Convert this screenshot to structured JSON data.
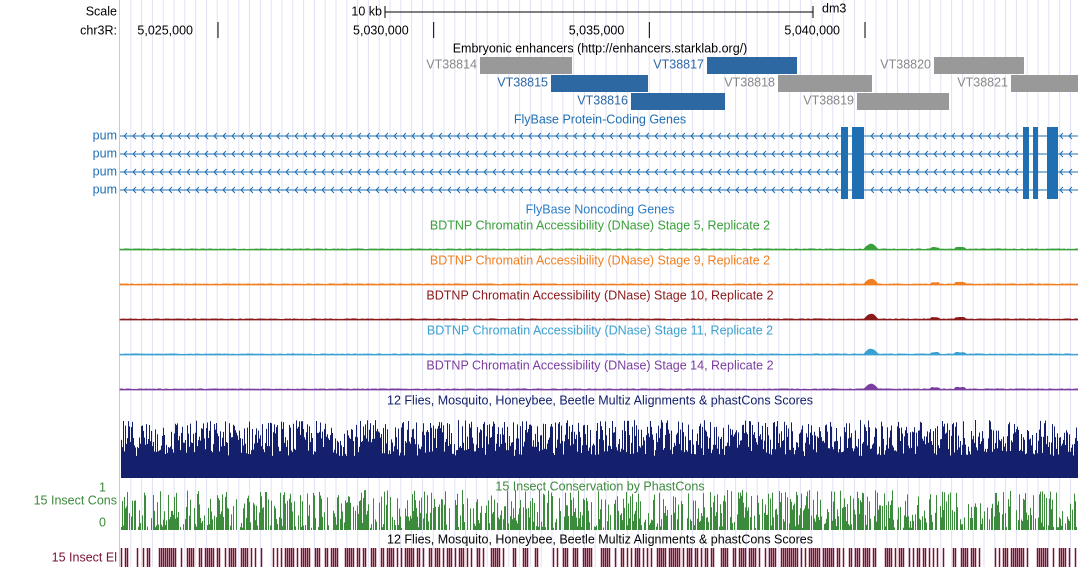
{
  "header": {
    "scale": "Scale",
    "scale_bar": "10 kb",
    "assembly": "dm3",
    "chrom": "chr3R:"
  },
  "ruler": {
    "ticks": [
      {
        "value": 5025000,
        "label": "5,025,000"
      },
      {
        "value": 5030000,
        "label": "5,030,000"
      },
      {
        "value": 5035000,
        "label": "5,035,000"
      },
      {
        "value": 5040000,
        "label": "5,040,000"
      }
    ]
  },
  "enhancers": {
    "title": "Embryonic enhancers (http://enhancers.starklab.org/)",
    "items": [
      "VT38814",
      "VT38815",
      "VT38816",
      "VT38817",
      "VT38818",
      "VT38819",
      "VT38820",
      "VT38821"
    ]
  },
  "protein_genes": {
    "title": "FlyBase Protein-Coding Genes",
    "genes": [
      "pum",
      "pum",
      "pum",
      "pum"
    ]
  },
  "noncoding_genes": {
    "title": "FlyBase Noncoding Genes"
  },
  "dnase_tracks": [
    "BDTNP Chromatin Accessibility (DNase) Stage 5, Replicate 2",
    "BDTNP Chromatin Accessibility (DNase) Stage 9, Replicate 2",
    "BDTNP Chromatin Accessibility (DNase) Stage 10, Replicate 2",
    "BDTNP Chromatin Accessibility (DNase) Stage 11, Replicate 2",
    "BDTNP Chromatin Accessibility (DNase) Stage 14, Replicate 2"
  ],
  "multiz": {
    "title": "12 Flies, Mosquito, Honeybee, Beetle Multiz Alignments & phastCons Scores"
  },
  "phastcons": {
    "title": "15 Insect Conservation by PhastCons",
    "label": "15 Insect Cons",
    "max": "1",
    "min": "0"
  },
  "elements": {
    "title": "12 Flies, Mosquito, Honeybee, Beetle Multiz Alignments & phastCons Scores",
    "label": "15 Insect El"
  }
}
